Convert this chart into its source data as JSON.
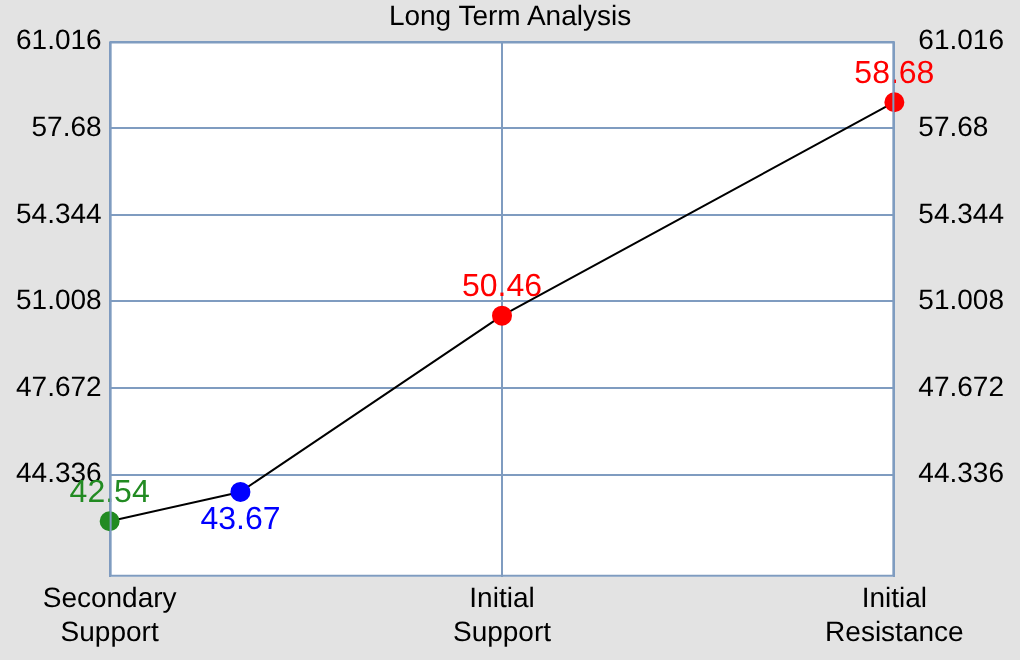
{
  "chart_data": {
    "type": "line",
    "title": "Long Term Analysis",
    "categories": [
      "Secondary Support",
      null,
      null,
      "Initial Support",
      null,
      null,
      "Initial Resistance"
    ],
    "series": [
      {
        "color": "#000000",
        "colors": [
          "#228b22",
          "#0000ff",
          null,
          "#ff0000",
          null,
          null,
          "#ff0000"
        ],
        "values": [
          42.54,
          43.67,
          null,
          50.46,
          null,
          null,
          58.68
        ]
      }
    ],
    "ylim": [
      40.4,
      61.016
    ],
    "yticks": [
      44.336,
      47.672,
      51.008,
      54.344,
      57.68,
      61.016
    ],
    "y2lim": [
      40.4,
      61.016
    ],
    "y2ticks": [
      44.336,
      47.672,
      51.008,
      54.344,
      57.68,
      61.016
    ],
    "grid": true,
    "marker": "circle",
    "data_labels": true,
    "legend": false
  }
}
